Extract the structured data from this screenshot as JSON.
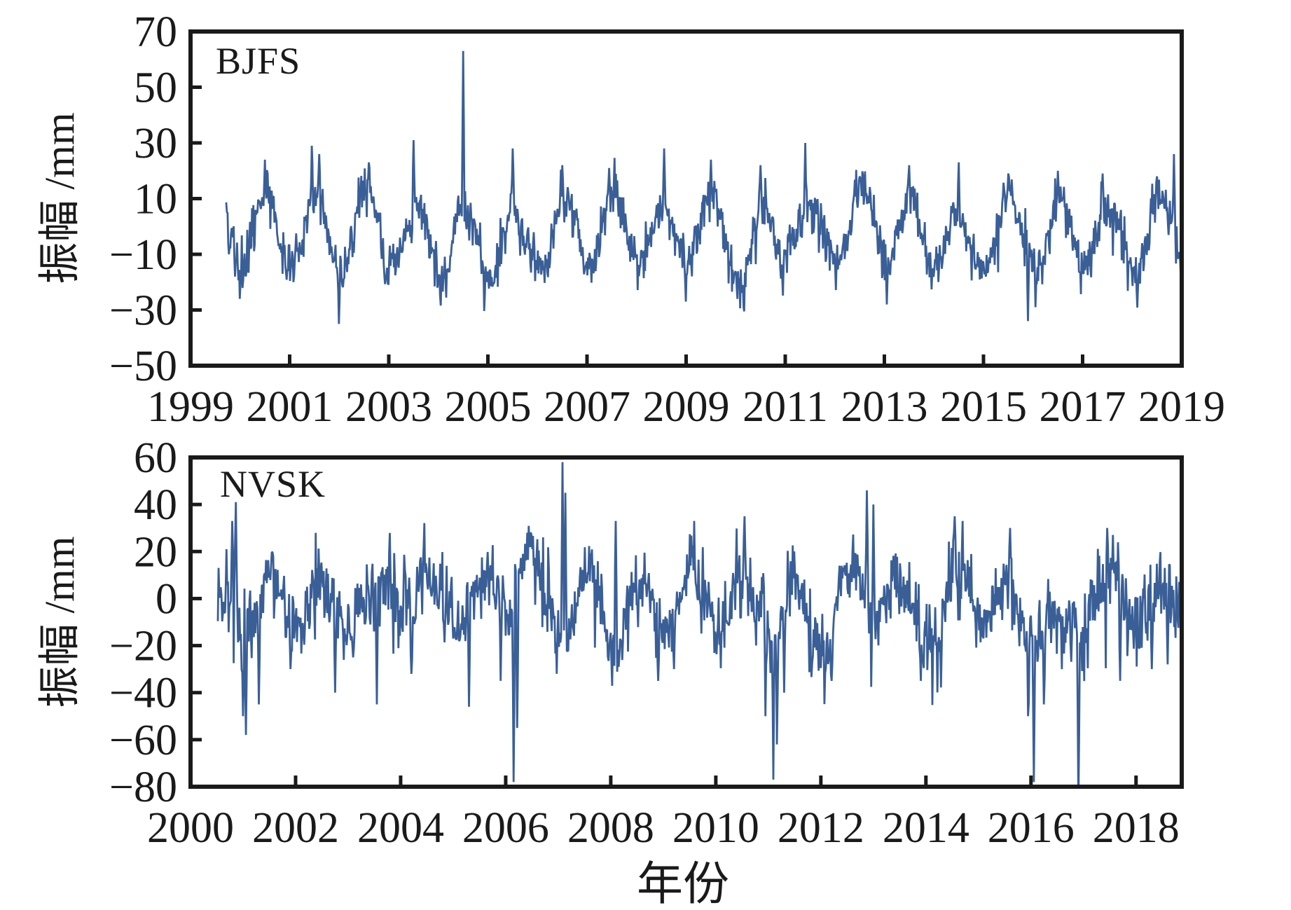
{
  "figure": {
    "xlabel": "年份",
    "background_color": "#ffffff",
    "axis_color": "#1a1a1a",
    "line_color": "#3a5f97",
    "tick_label_color": "#1a1a1a",
    "description": "Two stacked GNSS vertical displacement amplitude time series (daily solutions) with annual seasonal oscillation and outlier spikes."
  },
  "chart_data": [
    {
      "type": "line",
      "station": "BJFS",
      "ylabel": "振幅 /mm",
      "xlabel": "年份",
      "xlim": [
        1999,
        2019
      ],
      "ylim": [
        -50,
        70
      ],
      "xticks": [
        1999,
        2001,
        2003,
        2005,
        2007,
        2009,
        2011,
        2013,
        2015,
        2017,
        2019
      ],
      "yticks": [
        70,
        50,
        30,
        10,
        -10,
        -30,
        -50
      ],
      "grid": false,
      "legend": "none",
      "line_color": "#3a5f97",
      "series_model": {
        "seed": 20190417,
        "t_start": 1999.72,
        "t_end": 2019.02,
        "samples_per_year": 73,
        "mean_offset": -3,
        "seasonal_peak_fraction": 0.54,
        "amp_by_year": [
          13,
          14,
          12,
          14,
          10,
          13,
          11,
          10,
          12,
          12,
          11,
          13,
          10,
          11,
          12,
          10,
          10,
          11,
          10,
          12,
          11
        ],
        "noise_sigma": 4.2,
        "walk_step": 0.8,
        "walk_damp": 0.975,
        "spike_prob": 0.015,
        "spike_min": 6,
        "spike_max": 14,
        "spike_negative_fraction": 0.6
      },
      "anomalies": [
        [
          1999.78,
          -10
        ],
        [
          1999.9,
          -18
        ],
        [
          2000.0,
          -26
        ],
        [
          2000.5,
          24
        ],
        [
          2001.45,
          29
        ],
        [
          2001.6,
          26
        ],
        [
          2002.0,
          -35
        ],
        [
          2002.6,
          23
        ],
        [
          2003.5,
          31
        ],
        [
          2004.5,
          63
        ],
        [
          2005.5,
          28
        ],
        [
          2006.5,
          22
        ],
        [
          2007.45,
          21
        ],
        [
          2008.55,
          28
        ],
        [
          2009.0,
          -27
        ],
        [
          2009.5,
          24
        ],
        [
          2010.5,
          22
        ],
        [
          2011.4,
          30
        ],
        [
          2012.5,
          18
        ],
        [
          2013.05,
          -28
        ],
        [
          2013.5,
          22
        ],
        [
          2014.5,
          23
        ],
        [
          2015.5,
          19
        ],
        [
          2015.9,
          -34
        ],
        [
          2016.05,
          -29
        ],
        [
          2016.5,
          20
        ],
        [
          2017.4,
          19
        ],
        [
          2018.5,
          18
        ],
        [
          2018.85,
          26
        ],
        [
          2019.0,
          -24
        ]
      ]
    },
    {
      "type": "line",
      "station": "NVSK",
      "ylabel": "振幅 /mm",
      "xlabel": "年份",
      "xlim": [
        2000,
        2018.87
      ],
      "ylim": [
        -80,
        60
      ],
      "xticks": [
        2000,
        2002,
        2004,
        2006,
        2008,
        2010,
        2012,
        2014,
        2016,
        2018
      ],
      "yticks": [
        60,
        40,
        20,
        0,
        -20,
        -40,
        -60,
        -80
      ],
      "grid": false,
      "legend": "none",
      "line_color": "#3a5f97",
      "series_model": {
        "seed": 99173,
        "t_start": 2000.52,
        "t_end": 2018.98,
        "samples_per_year": 73,
        "mean_offset": -4,
        "seasonal_peak_fraction": 0.52,
        "amp_by_year": [
          7,
          7,
          8,
          8,
          9,
          10,
          12,
          14,
          13,
          14,
          15,
          16,
          15,
          14,
          15,
          12,
          10,
          9,
          9
        ],
        "noise_sigma": 7.5,
        "walk_step": 1.6,
        "walk_damp": 0.97,
        "spike_prob": 0.035,
        "spike_min": 8,
        "spike_max": 22,
        "spike_negative_fraction": 0.7
      },
      "anomalies": [
        [
          2000.68,
          21
        ],
        [
          2000.8,
          33
        ],
        [
          2000.86,
          41
        ],
        [
          2001.0,
          -50
        ],
        [
          2001.06,
          -58
        ],
        [
          2001.3,
          -45
        ],
        [
          2001.9,
          -30
        ],
        [
          2002.75,
          -40
        ],
        [
          2003.1,
          -25
        ],
        [
          2003.55,
          -45
        ],
        [
          2004.2,
          -32
        ],
        [
          2005.3,
          -46
        ],
        [
          2005.9,
          -35
        ],
        [
          2006.15,
          -78
        ],
        [
          2006.22,
          -55
        ],
        [
          2007.08,
          58
        ],
        [
          2007.14,
          45
        ],
        [
          2008.1,
          33
        ],
        [
          2008.9,
          -35
        ],
        [
          2009.2,
          -30
        ],
        [
          2010.55,
          35
        ],
        [
          2010.95,
          -50
        ],
        [
          2011.1,
          -77
        ],
        [
          2011.17,
          -62
        ],
        [
          2011.3,
          -40
        ],
        [
          2012.2,
          -35
        ],
        [
          2012.88,
          46
        ],
        [
          2013.0,
          40
        ],
        [
          2013.9,
          -35
        ],
        [
          2014.55,
          35
        ],
        [
          2014.7,
          33
        ],
        [
          2015.6,
          30
        ],
        [
          2015.95,
          -50
        ],
        [
          2016.05,
          -78
        ],
        [
          2016.25,
          -45
        ],
        [
          2016.9,
          -88
        ],
        [
          2017.45,
          30
        ],
        [
          2017.7,
          -35
        ],
        [
          2018.3,
          -30
        ],
        [
          2018.6,
          -28
        ],
        [
          2018.95,
          -32
        ]
      ]
    }
  ]
}
